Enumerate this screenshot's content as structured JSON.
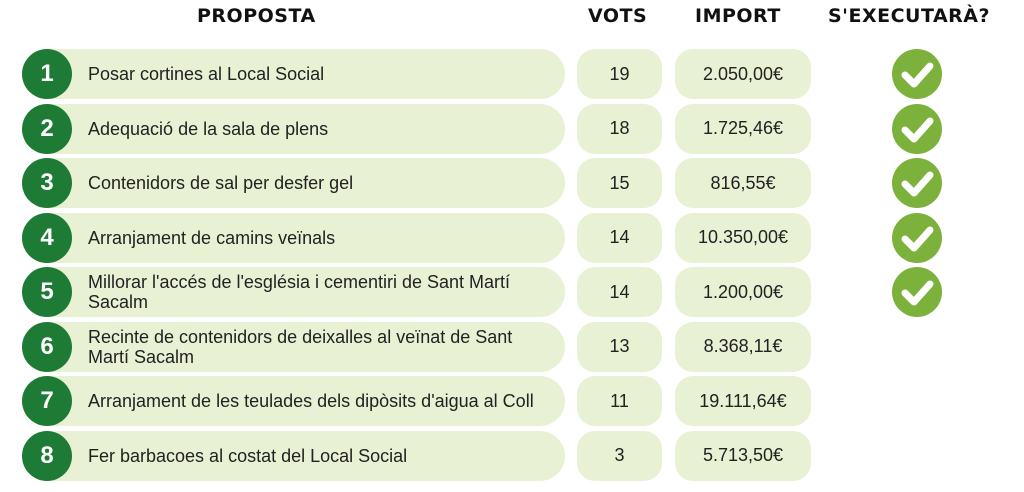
{
  "headers": {
    "proposta": "PROPOSTA",
    "vots": "VOTS",
    "import": "IMPORT",
    "executara": "S'EXECUTARÀ?"
  },
  "rows": [
    {
      "n": "1",
      "text": "Posar cortines al Local Social",
      "votes": "19",
      "amount": "2.050,00€",
      "executed": true
    },
    {
      "n": "2",
      "text": "Adequació de la sala de plens",
      "votes": "18",
      "amount": "1.725,46€",
      "executed": true
    },
    {
      "n": "3",
      "text": "Contenidors de sal per desfer gel",
      "votes": "15",
      "amount": "816,55€",
      "executed": true
    },
    {
      "n": "4",
      "text": "Arranjament de camins veïnals",
      "votes": "14",
      "amount": "10.350,00€",
      "executed": true
    },
    {
      "n": "5",
      "text": "Millorar l'accés de l'església i cementiri de Sant Martí Sacalm",
      "votes": "14",
      "amount": "1.200,00€",
      "executed": true
    },
    {
      "n": "6",
      "text": "Recinte de contenidors de deixalles al veïnat de Sant Martí Sacalm",
      "votes": "13",
      "amount": "8.368,11€",
      "executed": false
    },
    {
      "n": "7",
      "text": "Arranjament de les teulades dels dipòsits d'aigua al Coll",
      "votes": "11",
      "amount": "19.111,64€",
      "executed": false
    },
    {
      "n": "8",
      "text": "Fer barbacoes al costat del Local Social",
      "votes": "3",
      "amount": "5.713,50€",
      "executed": false
    }
  ]
}
